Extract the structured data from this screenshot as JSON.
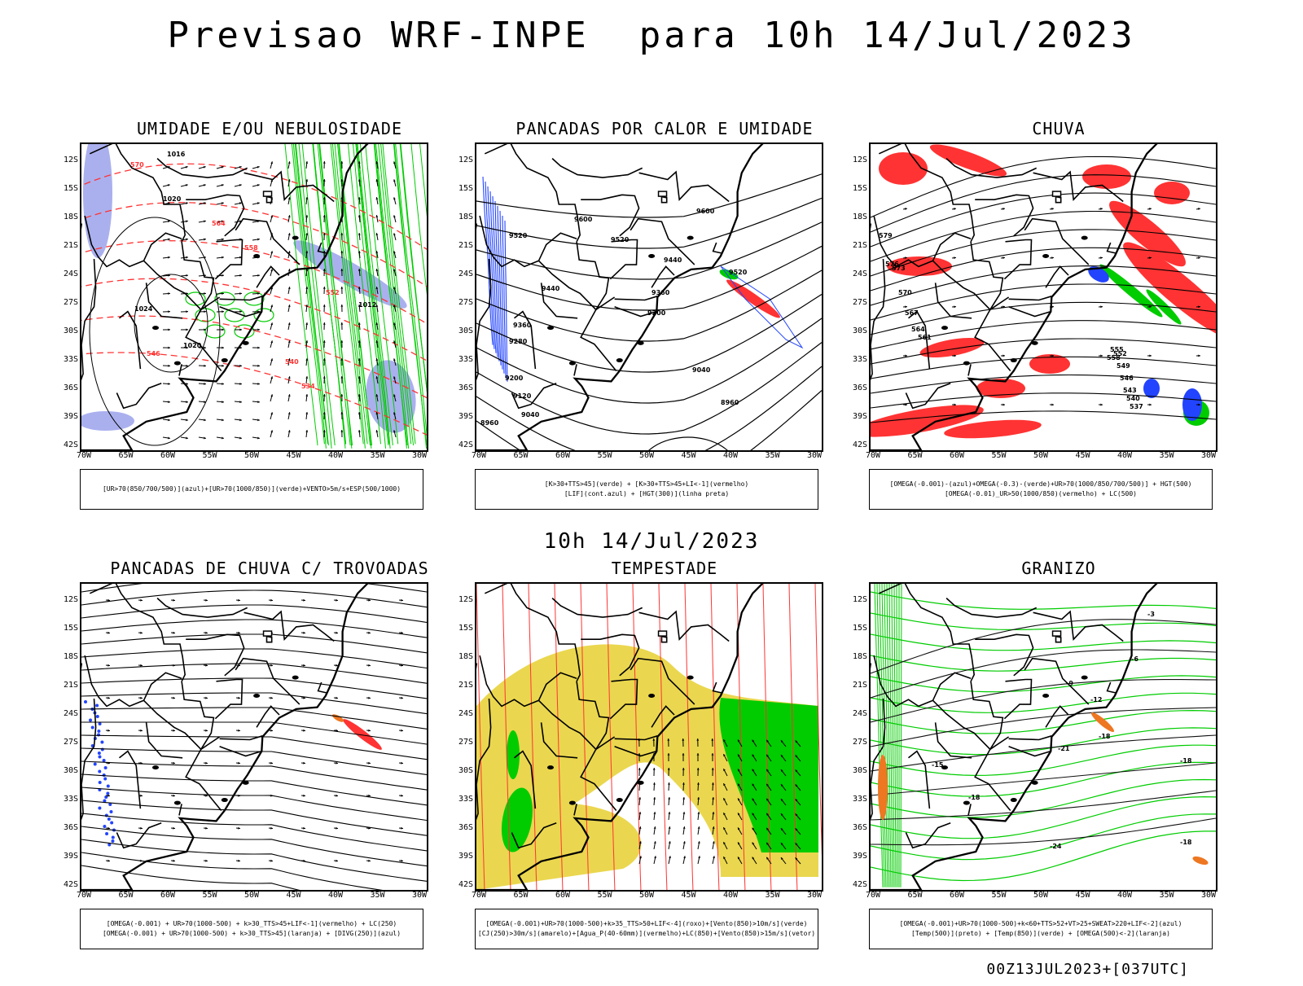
{
  "title": "Previsao WRF-INPE  para 10h 14/Jul/2023",
  "mid_date": "10h 14/Jul/2023",
  "footer": "00Z13JUL2023+[037UTC]",
  "lat_labels": [
    "12S",
    "15S",
    "18S",
    "21S",
    "24S",
    "27S",
    "30S",
    "33S",
    "36S",
    "39S",
    "42S"
  ],
  "lon_labels": [
    "70W",
    "65W",
    "60W",
    "55W",
    "50W",
    "45W",
    "40W",
    "35W",
    "30W"
  ],
  "panels": [
    {
      "id": "umidade",
      "title": "UMIDADE E/OU NEBULOSIDADE",
      "legend": [
        "[UR>70(850/700/500)](azul)+[UR>70(1000/850)](verde)+VENTO>5m/s+ESP(500/1000)"
      ],
      "contour_labels": [
        "1016",
        "1020",
        "1024",
        "1012",
        "570",
        "564",
        "558",
        "552",
        "546",
        "540",
        "534"
      ]
    },
    {
      "id": "pancadas_calor",
      "title": "PANCADAS POR CALOR E UMIDADE",
      "legend": [
        "[K>30+TTS>45](verde) + [K>30+TTS>45+LI<-1](vermelho)",
        "[LIF](cont.azul) + [HGT(300)](linha preta)"
      ],
      "contour_labels": [
        "9600",
        "9520",
        "9440",
        "9360",
        "9280",
        "9200",
        "9120",
        "9040",
        "8960"
      ]
    },
    {
      "id": "chuva",
      "title": "CHUVA",
      "legend": [
        "[OMEGA(-0.001)-(azul)+OMEGA(-0.3)-(verde)+UR>70(1000/850/700/500)] + HGT(500)",
        "[OMEGA(-0.01)_UR>50(1000/850)(vermelho) + LC(500)"
      ],
      "contour_labels": [
        "579",
        "576",
        "573",
        "570",
        "567",
        "564",
        "561",
        "558",
        "555",
        "552",
        "549",
        "546",
        "543",
        "540",
        "537"
      ]
    },
    {
      "id": "trovoadas",
      "title": "PANCADAS DE CHUVA C/ TROVOADAS",
      "legend": [
        "[OMEGA(-0.001) + UR>70(1000-500) + k>30_TTS>45+LIF<-1](vermelho) + LC(250)",
        "[OMEGA(-0.001) + UR>70(1000-500) + k>30_TTS>45](laranja) + [DIVG(250)](azul)"
      ],
      "contour_labels": []
    },
    {
      "id": "tempestade",
      "title": "TEMPESTADE",
      "legend": [
        "[OMEGA(-0.001)+UR>70(1000-500)+k>35_TTS>50+LIF<-4](roxo)+[Vento(850)>10m/s](verde)",
        "[CJ(250)>30m/s](amarelo)+[Agua_P(40-60mm)](vermelho)+LC(850)+[Vento(850)>15m/s](vetor)"
      ],
      "contour_labels": []
    },
    {
      "id": "granizo",
      "title": "GRANIZO",
      "legend": [
        "[OMEGA(-0.001)+UR>70(1000-500)+k<60+TTS>52+VT>25+SWEAT>220+LIF<-2](azul)",
        "[Temp(500)](preto) + [Temp(850)](verde) + [OMEGA(500)<-2](laranja)"
      ],
      "contour_labels": [
        "-3",
        "-6",
        "-9",
        "-12",
        "-15",
        "-18",
        "-21",
        "-24"
      ]
    }
  ],
  "colors": {
    "red": "#ff3333",
    "green": "#00cc00",
    "blue": "#2244ff",
    "lavender": "#aab0ee",
    "yellow": "#e6d030",
    "orange": "#ee7722",
    "dark": "#111111"
  }
}
